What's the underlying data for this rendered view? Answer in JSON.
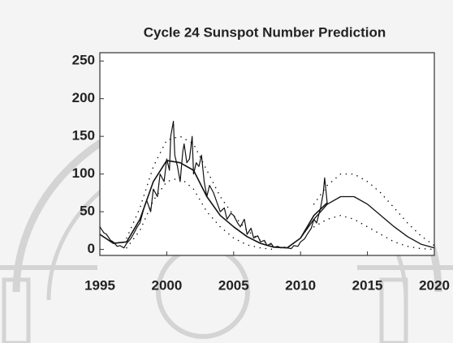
{
  "chart_data": {
    "type": "line",
    "title": "Cycle 24 Sunspot Number Prediction",
    "xlim": [
      1995,
      2020
    ],
    "xticks": [
      1995,
      2000,
      2005,
      2010,
      2015,
      2020
    ],
    "ylim": [
      -8,
      261
    ],
    "yticks": [
      0,
      50,
      100,
      150,
      200,
      250
    ],
    "series": [
      {
        "color": "#111111",
        "style": "solid",
        "width": 1.2,
        "x": [
          1995.0,
          1995.3,
          1995.5,
          1995.8,
          1996.0,
          1996.3,
          1996.5,
          1996.8,
          1997.0,
          1997.3,
          1997.5,
          1997.8,
          1998.0,
          1998.3,
          1998.5,
          1998.8,
          1999.0,
          1999.3,
          1999.5,
          1999.8,
          2000.0,
          2000.2,
          2000.3,
          2000.5,
          2000.6,
          2000.8,
          2001.0,
          2001.2,
          2001.3,
          2001.5,
          2001.7,
          2001.9,
          2002.0,
          2002.2,
          2002.4,
          2002.6,
          2002.8,
          2003.0,
          2003.2,
          2003.5,
          2003.8,
          2004.0,
          2004.3,
          2004.5,
          2004.8,
          2005.0,
          2005.3,
          2005.5,
          2005.8,
          2006.0,
          2006.3,
          2006.5,
          2006.8,
          2007.0,
          2007.3,
          2007.5,
          2007.8,
          2008.0,
          2008.3,
          2008.5,
          2008.8,
          2009.0,
          2009.3,
          2009.5,
          2009.8,
          2010.0,
          2010.3,
          2010.5,
          2010.8,
          2011.0,
          2011.2,
          2011.5,
          2011.7,
          2011.8,
          2012.0
        ],
        "values": [
          30,
          22,
          20,
          12,
          10,
          4,
          5,
          2,
          8,
          14,
          20,
          30,
          35,
          55,
          65,
          50,
          80,
          70,
          100,
          90,
          120,
          105,
          150,
          170,
          125,
          110,
          90,
          130,
          140,
          115,
          120,
          150,
          100,
          115,
          110,
          125,
          90,
          70,
          85,
          75,
          60,
          50,
          55,
          40,
          48,
          45,
          35,
          30,
          40,
          20,
          28,
          15,
          18,
          10,
          12,
          5,
          8,
          3,
          4,
          2,
          3,
          2,
          1,
          5,
          4,
          10,
          14,
          20,
          28,
          40,
          35,
          55,
          75,
          95,
          60
        ]
      },
      {
        "color": "#111111",
        "style": "solid",
        "width": 1.6,
        "x": [
          1995,
          1996,
          1997,
          1998,
          1999,
          2000,
          2001,
          2002,
          2003,
          2004,
          2005,
          2006,
          2007,
          2008,
          2009,
          2010,
          2011,
          2012
        ],
        "values": [
          20,
          8,
          10,
          40,
          90,
          118,
          115,
          105,
          70,
          45,
          30,
          17,
          8,
          3,
          2,
          15,
          45,
          62
        ]
      },
      {
        "color": "#111111",
        "style": "solid",
        "width": 1.3,
        "x": [
          2010,
          2011,
          2012,
          2013,
          2014,
          2015,
          2016,
          2017,
          2018,
          2019,
          2020
        ],
        "values": [
          15,
          40,
          60,
          70,
          70,
          60,
          45,
          30,
          17,
          7,
          2
        ]
      },
      {
        "color": "#111111",
        "style": "dotted",
        "width": 1.5,
        "x": [
          2011,
          2012,
          2013,
          2014,
          2015,
          2016,
          2017,
          2018,
          2019,
          2020
        ],
        "values": [
          60,
          85,
          100,
          100,
          90,
          75,
          55,
          35,
          18,
          5
        ]
      },
      {
        "color": "#111111",
        "style": "dotted",
        "width": 1.5,
        "x": [
          2011,
          2012,
          2013,
          2014,
          2015,
          2016,
          2017,
          2018,
          2019,
          2020
        ],
        "values": [
          30,
          40,
          45,
          40,
          30,
          20,
          10,
          4,
          1,
          0
        ]
      },
      {
        "color": "#111111",
        "style": "dotted",
        "width": 1.5,
        "x": [
          1997,
          1998,
          1999,
          2000,
          2001,
          2002,
          2003,
          2004,
          2005,
          2006,
          2007,
          2008
        ],
        "values": [
          15,
          55,
          110,
          145,
          150,
          140,
          105,
          70,
          45,
          25,
          12,
          5
        ]
      },
      {
        "color": "#111111",
        "style": "dotted",
        "width": 1.5,
        "x": [
          1997,
          1998,
          1999,
          2000,
          2001,
          2002,
          2003,
          2004,
          2005,
          2006,
          2007,
          2008
        ],
        "values": [
          2,
          25,
          65,
          90,
          95,
          80,
          50,
          30,
          15,
          6,
          2,
          0
        ]
      }
    ]
  }
}
